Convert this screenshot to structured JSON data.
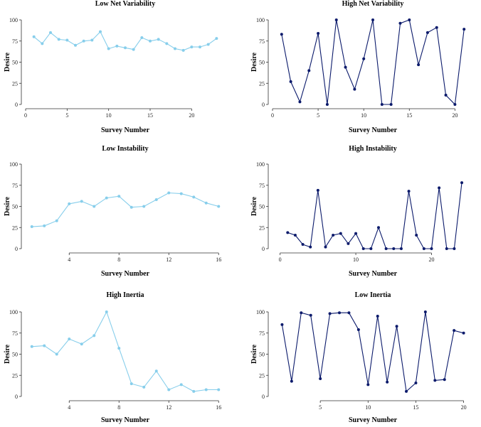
{
  "colors": {
    "light": "#87CEEB",
    "dark": "#0B1A6B"
  },
  "chart_data": [
    {
      "type": "line",
      "title": "Low Net Variability",
      "xlabel": "Survey Number",
      "ylabel": "Desire",
      "series_color": "light",
      "xlim": [
        0,
        24
      ],
      "ylim": [
        0,
        100
      ],
      "xticks": [
        0,
        5,
        10,
        15,
        20
      ],
      "yticks": [
        0,
        25,
        50,
        75,
        100
      ],
      "x": [
        1,
        2,
        3,
        4,
        5,
        6,
        7,
        8,
        9,
        10,
        11,
        12,
        13,
        14,
        15,
        16,
        17,
        18,
        19,
        20,
        21,
        22,
        23
      ],
      "values": [
        80,
        72,
        85,
        77,
        76,
        70,
        75,
        76,
        86,
        66,
        69,
        67,
        65,
        79,
        75,
        77,
        72,
        66,
        64,
        68,
        68,
        71,
        78
      ]
    },
    {
      "type": "line",
      "title": "High Net Variability",
      "xlabel": "Survey Number",
      "ylabel": "Desire",
      "series_color": "dark",
      "xlim": [
        0,
        22
      ],
      "ylim": [
        0,
        100
      ],
      "xticks": [
        0,
        5,
        10,
        15,
        20
      ],
      "yticks": [
        0,
        25,
        50,
        75,
        100
      ],
      "x": [
        1,
        2,
        3,
        4,
        5,
        6,
        7,
        8,
        9,
        10,
        11,
        12,
        13,
        14,
        15,
        16,
        17,
        18,
        19,
        20,
        21
      ],
      "values": [
        83,
        27,
        3,
        40,
        84,
        0,
        100,
        44,
        18,
        54,
        100,
        0,
        0,
        96,
        100,
        47,
        85,
        91,
        11,
        0,
        89
      ]
    },
    {
      "type": "line",
      "title": "Low Instability",
      "xlabel": "Survey Number",
      "ylabel": "Desire",
      "series_color": "light",
      "xlim": [
        0.5,
        16.5
      ],
      "ylim": [
        0,
        100
      ],
      "xticks": [
        4,
        8,
        12,
        16
      ],
      "yticks": [
        0,
        25,
        50,
        75,
        100
      ],
      "x": [
        1,
        2,
        3,
        4,
        5,
        6,
        7,
        8,
        9,
        10,
        11,
        12,
        13,
        14,
        15,
        16
      ],
      "values": [
        26,
        27,
        33,
        53,
        56,
        50,
        60,
        62,
        49,
        50,
        58,
        66,
        65,
        61,
        54,
        50
      ]
    },
    {
      "type": "line",
      "title": "High Instability",
      "xlabel": "Survey Number",
      "ylabel": "Desire",
      "series_color": "dark",
      "xlim": [
        -1,
        25.5
      ],
      "ylim": [
        0,
        100
      ],
      "xticks": [
        0,
        10,
        20
      ],
      "yticks": [
        0,
        25,
        50,
        75,
        100
      ],
      "x": [
        1,
        2,
        3,
        4,
        5,
        6,
        7,
        8,
        9,
        10,
        11,
        12,
        13,
        14,
        15,
        16,
        17,
        18,
        19,
        20,
        21,
        22,
        23,
        24
      ],
      "values": [
        19,
        16,
        5,
        2,
        69,
        2,
        16,
        18,
        6,
        18,
        0,
        0,
        25,
        0,
        0,
        0,
        68,
        16,
        0,
        0,
        72,
        0,
        0,
        78
      ]
    },
    {
      "type": "line",
      "title": "High Inertia",
      "xlabel": "Survey Number",
      "ylabel": "Desire",
      "series_color": "light",
      "xlim": [
        0.5,
        16.5
      ],
      "ylim": [
        0,
        100
      ],
      "xticks": [
        4,
        8,
        12,
        16
      ],
      "yticks": [
        0,
        25,
        50,
        75,
        100
      ],
      "x": [
        1,
        2,
        3,
        4,
        5,
        6,
        7,
        8,
        9,
        10,
        11,
        12,
        13,
        14,
        15,
        16
      ],
      "values": [
        59,
        60,
        50,
        68,
        62,
        72,
        100,
        57,
        15,
        11,
        30,
        8,
        14,
        6,
        8,
        8
      ]
    },
    {
      "type": "line",
      "title": "Low Inertia",
      "xlabel": "Survey Number",
      "ylabel": "Desire",
      "series_color": "dark",
      "xlim": [
        0,
        21
      ],
      "ylim": [
        0,
        100
      ],
      "xticks": [
        5,
        10,
        15,
        20
      ],
      "yticks": [
        0,
        25,
        50,
        75,
        100
      ],
      "x": [
        1,
        2,
        3,
        4,
        5,
        6,
        7,
        8,
        9,
        10,
        11,
        12,
        13,
        14,
        15,
        16,
        17,
        18,
        19,
        20
      ],
      "values": [
        85,
        18,
        99,
        96,
        21,
        98,
        99,
        99,
        79,
        14,
        95,
        17,
        83,
        6,
        16,
        100,
        19,
        20,
        78,
        75
      ]
    }
  ]
}
